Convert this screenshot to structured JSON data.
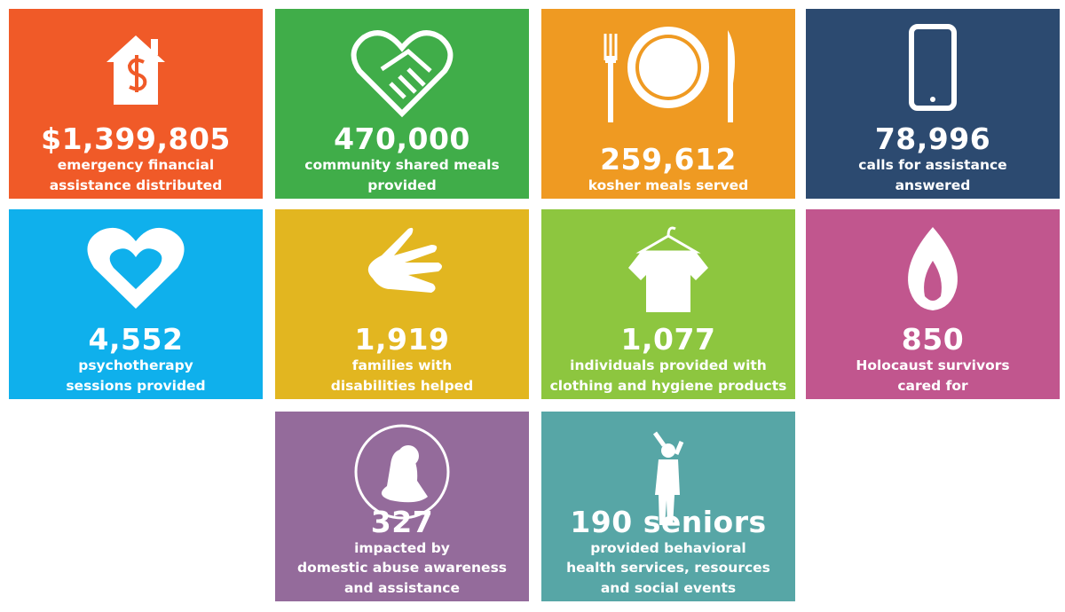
{
  "tiles": [
    {
      "figure": "$1,399,805",
      "lines": [
        "emergency financial",
        "assistance distributed"
      ]
    },
    {
      "figure": "470,000",
      "lines": [
        "community shared meals",
        "provided"
      ]
    },
    {
      "figure": "259,612",
      "lines": [
        "kosher meals served"
      ]
    },
    {
      "figure": "78,996",
      "lines": [
        "calls for assistance",
        "answered"
      ]
    },
    {
      "figure": "4,552",
      "lines": [
        "psychotherapy",
        "sessions provided"
      ]
    },
    {
      "figure": "1,919",
      "lines": [
        "families with",
        "disabilities helped"
      ]
    },
    {
      "figure": "1,077",
      "lines": [
        "individuals provided with",
        "clothing and hygiene products"
      ]
    },
    {
      "figure": "850",
      "lines": [
        "Holocaust survivors",
        "cared for"
      ]
    },
    {
      "figure": "327",
      "lines": [
        "impacted by",
        "domestic abuse awareness",
        "and assistance"
      ]
    },
    {
      "figure": "190 seniors",
      "lines": [
        "provided behavioral",
        "health services, resources",
        "and social events"
      ]
    }
  ]
}
